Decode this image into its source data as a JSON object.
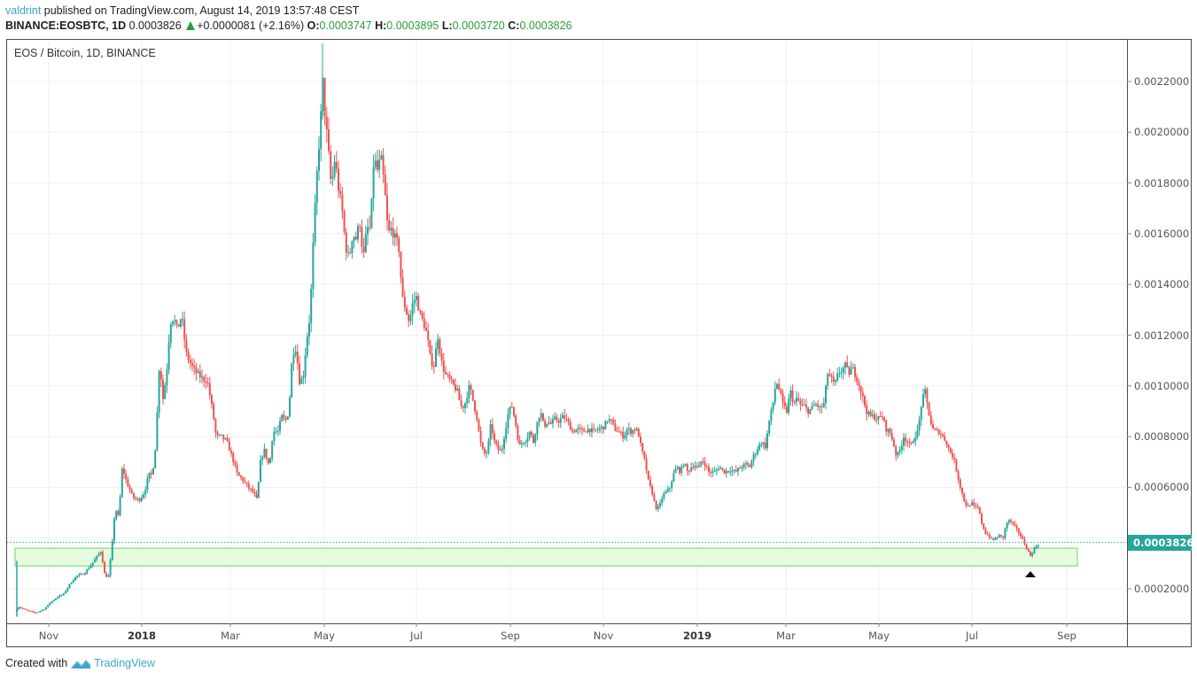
{
  "header": {
    "author": "valdrint",
    "published_text": "published on TradingView.com, August 14, 2019 13:57:48 CEST",
    "symbol": "BINANCE:EOSBTC, 1D",
    "last_price": "0.0003826",
    "change": "+0.0000081 (+2.16%)",
    "open_label": "O:",
    "open": "0.0003747",
    "high_label": "H:",
    "high": "0.0003895",
    "low_label": "L:",
    "low": "0.0003720",
    "close_label": "C:",
    "close": "0.0003826"
  },
  "legend": "EOS / Bitcoin, 1D, BINANCE",
  "footer": {
    "created_with": "Created with",
    "brand": "TradingView"
  },
  "price_axis": {
    "current_price_label": "0.0003826",
    "current_price_color": "#26a69a"
  },
  "colors": {
    "up": "#26a69a",
    "down": "#ef5350",
    "grid": "#e8f0f5",
    "support_zone_fill": "#e6fbe0",
    "support_zone_stroke": "#7ee07a"
  },
  "chart_data": {
    "type": "candlestick",
    "title": "EOS / Bitcoin, 1D, BINANCE",
    "xlabel": "",
    "ylabel": "",
    "ylim": [
      5e-05,
      0.00235
    ],
    "grid": true,
    "y_ticks": [
      "0.0022000",
      "0.0020000",
      "0.0018000",
      "0.0016000",
      "0.0014000",
      "0.0012000",
      "0.0010000",
      "0.0008000",
      "0.0006000",
      "0.0002000"
    ],
    "x_ticks": [
      {
        "label": "Nov",
        "bold": false
      },
      {
        "label": "2018",
        "bold": true
      },
      {
        "label": "Mar",
        "bold": false
      },
      {
        "label": "May",
        "bold": false
      },
      {
        "label": "Jul",
        "bold": false
      },
      {
        "label": "Sep",
        "bold": false
      },
      {
        "label": "Nov",
        "bold": false
      },
      {
        "label": "2019",
        "bold": true
      },
      {
        "label": "Mar",
        "bold": false
      },
      {
        "label": "May",
        "bold": false
      },
      {
        "label": "Jul",
        "bold": false
      },
      {
        "label": "Sep",
        "bold": false
      }
    ],
    "current_price": 0.0003826,
    "support_zone": {
      "low": 0.00029,
      "high": 0.00036,
      "from": "2017-10",
      "to": "2019-08"
    },
    "annotation": "black up-arrow below August 2019 low",
    "approx_close_path": [
      {
        "date": "2017-10",
        "price": 0.00013
      },
      {
        "date": "2017-11",
        "price": 0.00022
      },
      {
        "date": "2017-12",
        "price": 0.00035
      },
      {
        "date": "2018-01",
        "price": 0.001
      },
      {
        "date": "2018-01-20",
        "price": 0.00128
      },
      {
        "date": "2018-02",
        "price": 0.00105
      },
      {
        "date": "2018-03",
        "price": 0.00075
      },
      {
        "date": "2018-04",
        "price": 0.0009
      },
      {
        "date": "2018-04-28",
        "price": 0.00225
      },
      {
        "date": "2018-05-15",
        "price": 0.0017
      },
      {
        "date": "2018-06-05",
        "price": 0.00195
      },
      {
        "date": "2018-07",
        "price": 0.0013
      },
      {
        "date": "2018-08",
        "price": 0.001
      },
      {
        "date": "2018-09",
        "price": 0.0008
      },
      {
        "date": "2018-10",
        "price": 0.00085
      },
      {
        "date": "2018-11",
        "price": 0.00082
      },
      {
        "date": "2018-12",
        "price": 0.00055
      },
      {
        "date": "2019-01",
        "price": 0.0007
      },
      {
        "date": "2019-02-20",
        "price": 0.00095
      },
      {
        "date": "2019-04",
        "price": 0.00108
      },
      {
        "date": "2019-05",
        "price": 0.0008
      },
      {
        "date": "2019-06-10",
        "price": 0.00095
      },
      {
        "date": "2019-07",
        "price": 0.00052
      },
      {
        "date": "2019-07-25",
        "price": 0.00045
      },
      {
        "date": "2019-08-10",
        "price": 0.00034
      },
      {
        "date": "2019-08-14",
        "price": 0.0003826
      }
    ]
  }
}
